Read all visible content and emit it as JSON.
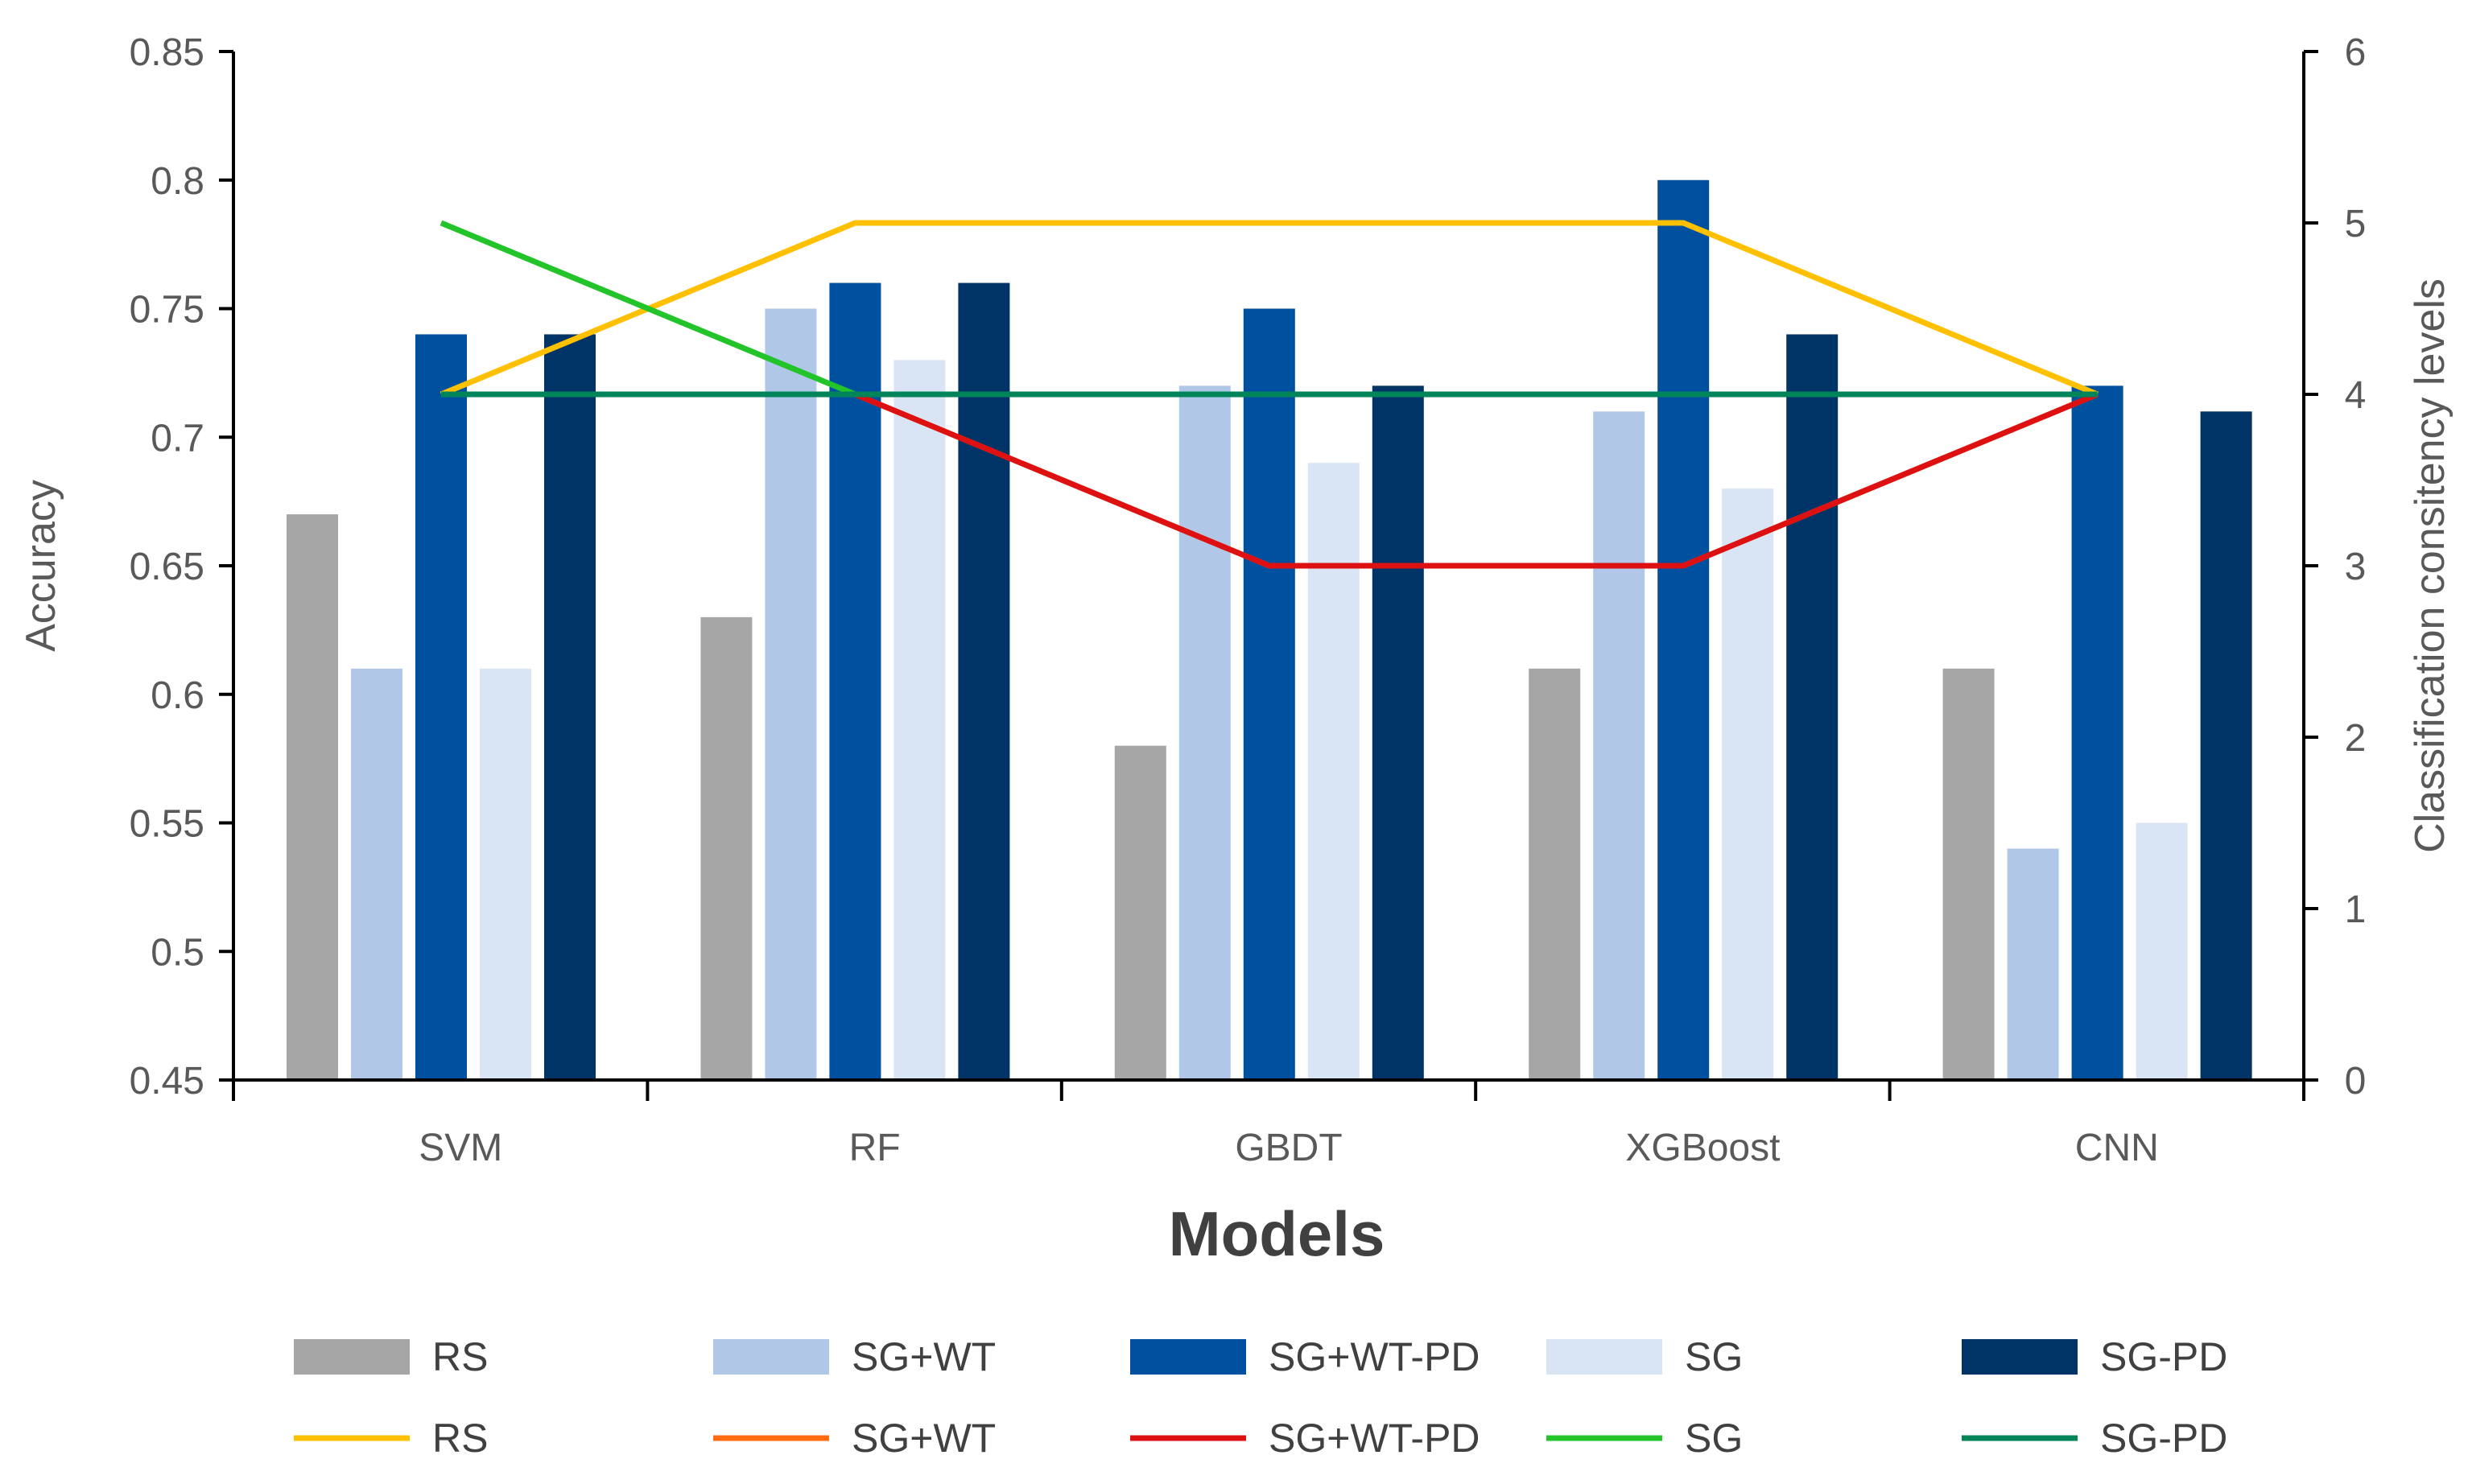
{
  "chart_data": {
    "type": "bar",
    "categories": [
      "SVM",
      "RF",
      "GBDT",
      "XGBoost",
      "CNN"
    ],
    "xlabel": "Models",
    "ylabel": "Accuracy",
    "y2label": "Classification consitency levels",
    "ylim": [
      0.45,
      0.85
    ],
    "y2lim": [
      0,
      6
    ],
    "yticks": [
      "0.45",
      "0.5",
      "0.55",
      "0.6",
      "0.65",
      "0.7",
      "0.75",
      "0.8",
      "0.85"
    ],
    "y2ticks": [
      "0",
      "1",
      "2",
      "3",
      "4",
      "5",
      "6"
    ],
    "bar_series": [
      {
        "name": "RS",
        "color": "#a6a6a6",
        "values": [
          0.67,
          0.63,
          0.58,
          0.61,
          0.61
        ]
      },
      {
        "name": "SG+WT",
        "color": "#b0c7e8",
        "values": [
          0.61,
          0.75,
          0.72,
          0.71,
          0.54
        ]
      },
      {
        "name": "SG+WT-PD",
        "color": "#0050a0",
        "values": [
          0.74,
          0.76,
          0.75,
          0.8,
          0.72
        ]
      },
      {
        "name": "SG",
        "color": "#d9e5f5",
        "values": [
          0.61,
          0.73,
          0.69,
          0.68,
          0.55
        ]
      },
      {
        "name": "SG-PD",
        "color": "#003366",
        "values": [
          0.74,
          0.76,
          0.72,
          0.74,
          0.71
        ]
      }
    ],
    "line_series": [
      {
        "name": "RS",
        "color": "#ffc000",
        "values": [
          4,
          5,
          5,
          5,
          4
        ]
      },
      {
        "name": "SG+WT",
        "color": "#ff6a13",
        "values": [
          4,
          4,
          3,
          3,
          4
        ]
      },
      {
        "name": "SG+WT-PD",
        "color": "#dd1111",
        "values": [
          4,
          4,
          3,
          3,
          4
        ]
      },
      {
        "name": "SG",
        "color": "#22c42a",
        "values": [
          5,
          4,
          4,
          4,
          4
        ]
      },
      {
        "name": "SG-PD",
        "color": "#00855a",
        "values": [
          4,
          4,
          4,
          4,
          4
        ]
      }
    ]
  }
}
